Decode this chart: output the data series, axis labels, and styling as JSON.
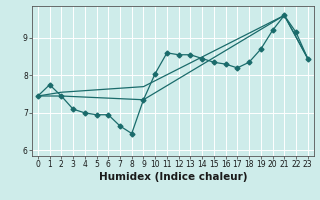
{
  "title": "",
  "xlabel": "Humidex (Indice chaleur)",
  "xlim": [
    -0.5,
    23.5
  ],
  "ylim": [
    5.85,
    9.85
  ],
  "xticks": [
    0,
    1,
    2,
    3,
    4,
    5,
    6,
    7,
    8,
    9,
    10,
    11,
    12,
    13,
    14,
    15,
    16,
    17,
    18,
    19,
    20,
    21,
    22,
    23
  ],
  "yticks": [
    6,
    7,
    8,
    9
  ],
  "bg_color": "#ceecea",
  "grid_color": "#ffffff",
  "line_color": "#1a6b6b",
  "line1_x": [
    0,
    1,
    2,
    3,
    4,
    5,
    6,
    7,
    8,
    9,
    10,
    11,
    12,
    13,
    14,
    15,
    16,
    17,
    18,
    19,
    20,
    21,
    22,
    23
  ],
  "line1_y": [
    7.45,
    7.75,
    7.45,
    7.1,
    7.0,
    6.95,
    6.95,
    6.65,
    6.45,
    7.35,
    8.05,
    8.6,
    8.55,
    8.55,
    8.45,
    8.35,
    8.3,
    8.2,
    8.35,
    8.7,
    9.2,
    9.6,
    9.15,
    8.45
  ],
  "line2_x": [
    0,
    2,
    9,
    21,
    23
  ],
  "line2_y": [
    7.45,
    7.55,
    7.7,
    9.6,
    8.45
  ],
  "line3_x": [
    0,
    2,
    9,
    21,
    23
  ],
  "line3_y": [
    7.45,
    7.45,
    7.35,
    9.6,
    8.45
  ],
  "markersize": 2.5,
  "linewidth": 0.9,
  "tick_fontsize": 5.5,
  "xlabel_fontsize": 7.5
}
